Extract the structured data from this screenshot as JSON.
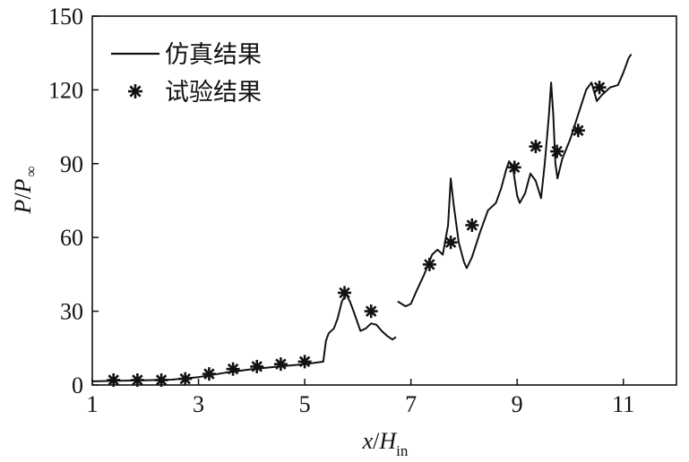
{
  "chart_data": {
    "type": "line",
    "title": "",
    "xlabel": {
      "var": "x",
      "sep": "/",
      "den": "H",
      "sub": "in"
    },
    "ylabel": {
      "var": "P",
      "sep": "/",
      "den": "P",
      "sub": "∞"
    },
    "xlim": [
      1,
      12
    ],
    "ylim": [
      0,
      150
    ],
    "xticks": [
      1,
      3,
      5,
      7,
      9,
      11
    ],
    "yticks": [
      0,
      30,
      60,
      90,
      120,
      150
    ],
    "grid": false,
    "legend": {
      "position": "top-left",
      "entries": [
        {
          "label": "仿真结果",
          "marker": "line"
        },
        {
          "label": "试验结果",
          "marker": "asterisk"
        }
      ]
    },
    "series": [
      {
        "name": "仿真结果",
        "kind": "line",
        "segments": [
          [
            [
              1.0,
              1.5
            ],
            [
              1.5,
              1.7
            ],
            [
              2.0,
              1.9
            ],
            [
              2.5,
              2.2
            ],
            [
              3.0,
              3.2
            ],
            [
              3.5,
              5.0
            ],
            [
              4.0,
              6.4
            ],
            [
              4.5,
              7.5
            ],
            [
              5.0,
              8.5
            ],
            [
              5.35,
              9.5
            ],
            [
              5.4,
              18.0
            ],
            [
              5.45,
              21.0
            ],
            [
              5.55,
              23.0
            ],
            [
              5.62,
              27.0
            ],
            [
              5.7,
              34.0
            ],
            [
              5.78,
              37.0
            ],
            [
              5.85,
              34.0
            ],
            [
              5.92,
              30.0
            ],
            [
              6.0,
              25.0
            ],
            [
              6.05,
              22.0
            ],
            [
              6.15,
              23.0
            ],
            [
              6.25,
              25.0
            ],
            [
              6.35,
              24.5
            ],
            [
              6.45,
              22.0
            ],
            [
              6.55,
              20.0
            ],
            [
              6.65,
              18.5
            ],
            [
              6.72,
              19.5
            ]
          ],
          [
            [
              6.75,
              34.0
            ],
            [
              6.9,
              32.0
            ],
            [
              7.0,
              33.0
            ],
            [
              7.1,
              38.0
            ],
            [
              7.25,
              45.0
            ],
            [
              7.4,
              53.0
            ],
            [
              7.5,
              55.0
            ],
            [
              7.6,
              53.0
            ],
            [
              7.7,
              65.0
            ],
            [
              7.75,
              84.0
            ],
            [
              7.8,
              74.0
            ],
            [
              7.9,
              58.0
            ],
            [
              8.0,
              50.0
            ],
            [
              8.05,
              47.5
            ],
            [
              8.15,
              52.0
            ],
            [
              8.3,
              62.0
            ],
            [
              8.45,
              71.0
            ],
            [
              8.6,
              74.0
            ],
            [
              8.7,
              80.0
            ],
            [
              8.8,
              88.0
            ],
            [
              8.85,
              91.0
            ],
            [
              8.93,
              87.0
            ],
            [
              9.0,
              77.0
            ],
            [
              9.05,
              74.0
            ],
            [
              9.15,
              78.0
            ],
            [
              9.25,
              86.0
            ],
            [
              9.35,
              83.0
            ],
            [
              9.45,
              76.0
            ],
            [
              9.52,
              90.0
            ],
            [
              9.6,
              110.0
            ],
            [
              9.64,
              123.0
            ],
            [
              9.68,
              110.0
            ],
            [
              9.72,
              90.0
            ],
            [
              9.76,
              84.0
            ],
            [
              9.85,
              92.0
            ],
            [
              10.0,
              100.0
            ],
            [
              10.15,
              110.0
            ],
            [
              10.3,
              120.0
            ],
            [
              10.4,
              123.0
            ],
            [
              10.5,
              115.5
            ],
            [
              10.6,
              118.0
            ],
            [
              10.75,
              121.0
            ],
            [
              10.9,
              122.0
            ],
            [
              11.0,
              127.0
            ],
            [
              11.1,
              133.0
            ],
            [
              11.15,
              134.5
            ]
          ]
        ]
      },
      {
        "name": "试验结果",
        "kind": "scatter",
        "points": [
          [
            1.4,
            2.0
          ],
          [
            1.85,
            2.0
          ],
          [
            2.3,
            2.0
          ],
          [
            2.75,
            2.5
          ],
          [
            3.2,
            4.5
          ],
          [
            3.65,
            6.5
          ],
          [
            4.1,
            7.5
          ],
          [
            4.55,
            8.5
          ],
          [
            5.0,
            9.5
          ],
          [
            5.75,
            37.5
          ],
          [
            6.25,
            30.0
          ],
          [
            7.35,
            49.0
          ],
          [
            7.75,
            58.0
          ],
          [
            8.15,
            65.0
          ],
          [
            8.95,
            88.5
          ],
          [
            9.35,
            97.0
          ],
          [
            9.75,
            95.0
          ],
          [
            10.15,
            103.5
          ],
          [
            10.55,
            121.0
          ]
        ]
      }
    ]
  }
}
